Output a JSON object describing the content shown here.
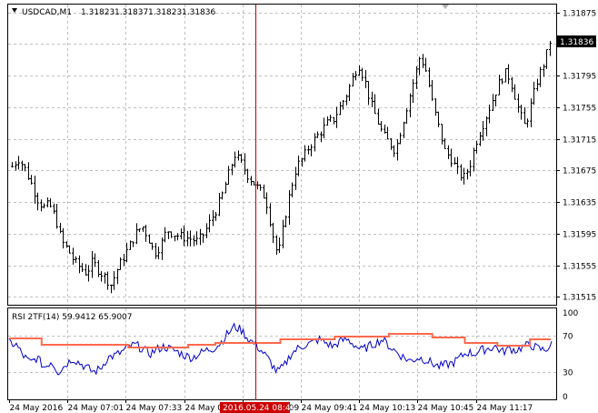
{
  "header": {
    "symbol": "USDCAD,M1",
    "open": "1.31823",
    "high": "1.31837",
    "low": "1.31823",
    "close": "1.31836",
    "menu_icon": "triangle-down-icon"
  },
  "price_axis": {
    "labels": [
      "1.31875",
      "1.31835",
      "1.31795",
      "1.31755",
      "1.31715",
      "1.31675",
      "1.31635",
      "1.31595",
      "1.31555",
      "1.31515"
    ],
    "current_price": "1.31836"
  },
  "rsi": {
    "label": "RSI 2TF(14) 59.9412 65.9007",
    "labels": [
      "100",
      "70",
      "30",
      "0"
    ],
    "fast_color": "#0000cc",
    "slow_color": "#ff6a4d"
  },
  "time_axis": {
    "labels": [
      "24 May 2016",
      "24 May 07:01",
      "24 May 07:33",
      "24 May 0",
      "24 May 09:09",
      "24 May 09:41",
      "24 May 10:13",
      "24 May 10:45",
      "24 May 11:17"
    ],
    "cursor_label": "2016.05.24 08:44"
  },
  "colors": {
    "grid": "#c0c0c0",
    "bars": "#000000",
    "cursor": "#cc0000",
    "price_tag_bg": "#000000",
    "price_tag_fg": "#ffffff"
  },
  "chart_data": {
    "type": "ohlc",
    "instrument": "USDCAD",
    "timeframe": "M1",
    "ylim": [
      1.31505,
      1.31885
    ],
    "grid": true,
    "time_labels": [
      "24 May 2016",
      "24 May 07:01",
      "24 May 07:33",
      "24 May 0",
      "24 May 09:09",
      "24 May 09:41",
      "24 May 10:13",
      "24 May 10:45",
      "24 May 11:17"
    ],
    "close_profile": [
      1.3168,
      1.3169,
      1.31678,
      1.3166,
      1.3164,
      1.31628,
      1.31632,
      1.31615,
      1.31585,
      1.31575,
      1.3156,
      1.31552,
      1.31545,
      1.3156,
      1.31548,
      1.3154,
      1.3153,
      1.3155,
      1.31565,
      1.3158,
      1.31595,
      1.31605,
      1.3159,
      1.3157,
      1.3158,
      1.316,
      1.31595,
      1.31592,
      1.3159,
      1.31588,
      1.31585,
      1.31595,
      1.3161,
      1.31625,
      1.31645,
      1.3167,
      1.31695,
      1.31685,
      1.3167,
      1.3166,
      1.3165,
      1.3164,
      1.316,
      1.31565,
      1.3161,
      1.3165,
      1.3168,
      1.3169,
      1.31705,
      1.31715,
      1.31725,
      1.31735,
      1.3174,
      1.31755,
      1.3177,
      1.3179,
      1.3181,
      1.3179,
      1.3176,
      1.3174,
      1.3172,
      1.3171,
      1.317,
      1.3173,
      1.3176,
      1.3179,
      1.3182,
      1.318,
      1.3176,
      1.3173,
      1.317,
      1.3169,
      1.31675,
      1.31665,
      1.3168,
      1.3171,
      1.3173,
      1.3175,
      1.3177,
      1.3179,
      1.318,
      1.3178,
      1.3175,
      1.3173,
      1.3176,
      1.3179,
      1.3181,
      1.31836
    ],
    "rsi_series": [
      {
        "name": "RSI 2TF(14)",
        "value": 59.9412,
        "profile": [
          62,
          60,
          48,
          40,
          46,
          35,
          42,
          30,
          38,
          45,
          40,
          35,
          30,
          34,
          46,
          48,
          52,
          58,
          60,
          55,
          50,
          55,
          58,
          55,
          52,
          48,
          46,
          50,
          54,
          56,
          62,
          72,
          80,
          76,
          66,
          60,
          52,
          42,
          30,
          36,
          50,
          56,
          60,
          62,
          66,
          62,
          58,
          64,
          66,
          60,
          54,
          58,
          62,
          66,
          58,
          52,
          46,
          42,
          46,
          44,
          40,
          36,
          38,
          40,
          46,
          52,
          50,
          54,
          56,
          58,
          52,
          56,
          54,
          58,
          60,
          56,
          54,
          60
        ]
      },
      {
        "name": "RSI 2TF(14) slow",
        "value": 65.9007,
        "steps": [
          [
            0,
            67
          ],
          [
            0.06,
            60
          ],
          [
            0.22,
            57
          ],
          [
            0.33,
            60
          ],
          [
            0.38,
            62
          ],
          [
            0.5,
            66
          ],
          [
            0.6,
            69
          ],
          [
            0.7,
            72
          ],
          [
            0.78,
            68
          ],
          [
            0.84,
            62
          ],
          [
            0.9,
            59
          ],
          [
            0.96,
            66
          ]
        ]
      }
    ],
    "rsi_ylim": [
      0,
      100
    ]
  }
}
